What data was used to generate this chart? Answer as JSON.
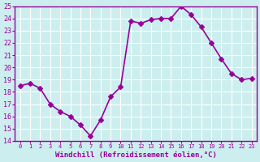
{
  "x": [
    0,
    1,
    2,
    3,
    4,
    5,
    6,
    7,
    8,
    9,
    10,
    11,
    12,
    13,
    14,
    15,
    16,
    17,
    18,
    19,
    20,
    21,
    22,
    23
  ],
  "y": [
    18.5,
    18.7,
    18.3,
    17.0,
    16.4,
    16.0,
    15.3,
    14.4,
    15.7,
    17.6,
    18.4,
    23.8,
    23.6,
    23.9,
    24.0,
    24.0,
    25.0,
    24.3,
    23.3,
    22.0,
    20.7,
    19.5,
    19.0,
    19.1
  ],
  "line_color": "#990099",
  "marker": "D",
  "marker_size": 3,
  "bg_color": "#cceeee",
  "grid_color": "#ffffff",
  "xlabel": "Windchill (Refroidissement éolien,°C)",
  "xlabel_color": "#990099",
  "tick_color": "#990099",
  "ylim": [
    14,
    25
  ],
  "xlim": [
    0,
    23
  ],
  "yticks": [
    14,
    15,
    16,
    17,
    18,
    19,
    20,
    21,
    22,
    23,
    24,
    25
  ],
  "xticks": [
    0,
    1,
    2,
    3,
    4,
    5,
    6,
    7,
    8,
    9,
    10,
    11,
    12,
    13,
    14,
    15,
    16,
    17,
    18,
    19,
    20,
    21,
    22,
    23
  ],
  "xtick_labels": [
    "0",
    "1",
    "2",
    "3",
    "4",
    "5",
    "6",
    "7",
    "8",
    "9",
    "10",
    "11",
    "12",
    "13",
    "14",
    "15",
    "16",
    "17",
    "18",
    "19",
    "20",
    "21",
    "22",
    "23"
  ],
  "spine_color": "#990099",
  "line_width": 1.2
}
